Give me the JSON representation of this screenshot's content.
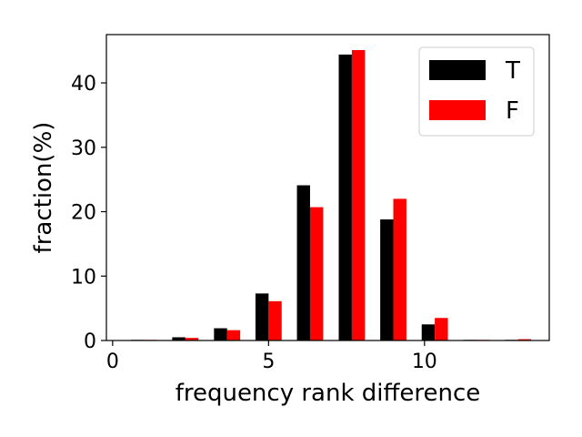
{
  "chart_data": {
    "type": "bar",
    "title": "",
    "xlabel": "frequency rank difference",
    "ylabel": "fraction(%)",
    "xlim": [
      -0.2,
      14
    ],
    "ylim": [
      0,
      47.5
    ],
    "xticks": [
      0,
      5,
      10
    ],
    "yticks": [
      0,
      10,
      20,
      30,
      40
    ],
    "grid": false,
    "legend_position": "top-right",
    "bar_width": 0.42,
    "categories": [
      1,
      2.33,
      3.67,
      5,
      6.33,
      7.67,
      9,
      10.33,
      11.67,
      13
    ],
    "series": [
      {
        "name": "T",
        "color": "#000000",
        "values": [
          0.1,
          0.5,
          1.9,
          7.3,
          24.1,
          44.4,
          18.8,
          2.5,
          0.1,
          0.1
        ]
      },
      {
        "name": "F",
        "color": "#ff0000",
        "values": [
          0.1,
          0.4,
          1.6,
          6.1,
          20.7,
          45.1,
          22.0,
          3.5,
          0.1,
          0.2
        ]
      }
    ]
  }
}
